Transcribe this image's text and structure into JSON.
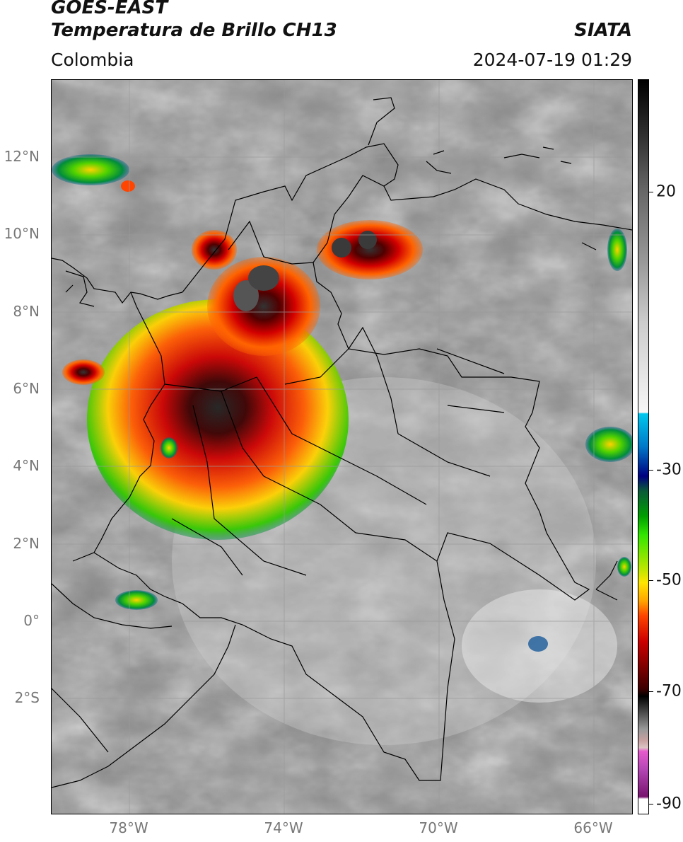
{
  "header": {
    "satellite": "GOES-EAST",
    "product": "Temperatura de Brillo CH13",
    "region": "Colombia",
    "agency": "SIATA",
    "datetime": "2024-07-19 01:29"
  },
  "map": {
    "lat_labels": [
      "12°N",
      "10°N",
      "8°N",
      "6°N",
      "4°N",
      "2°N",
      "0°",
      "2°S"
    ],
    "lon_labels": [
      "78°W",
      "74°W",
      "70°W",
      "66°W"
    ],
    "gridlines": true
  },
  "colorbar": {
    "tick_labels": [
      "20",
      "-30",
      "-50",
      "-70",
      "-90"
    ],
    "colors": {
      "cold_tops": "#000000",
      "deep_red": "#cc0000",
      "yellow": "#ffe600",
      "green": "#00a000",
      "blue": "#000080",
      "cyan": "#00c8ee",
      "magenta": "#b446b4"
    }
  }
}
